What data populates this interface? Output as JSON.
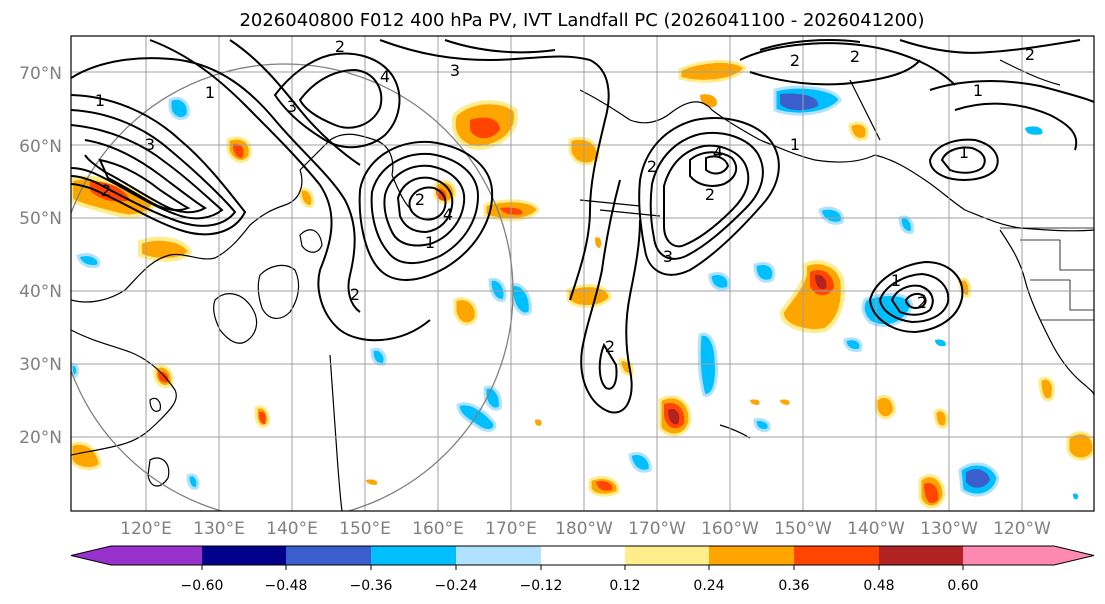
{
  "title": "2026040800 F012 400 hPa PV, IVT Landfall PC (2026041100 - 2026041200)",
  "lat_labels": [
    "70°N",
    "60°N",
    "50°N",
    "40°N",
    "30°N",
    "20°N"
  ],
  "lon_labels": [
    "120°E",
    "130°E",
    "140°E",
    "150°E",
    "160°E",
    "170°E",
    "180°W",
    "170°W",
    "160°W",
    "150°W",
    "140°W",
    "130°W",
    "120°W"
  ],
  "colorbar": {
    "ticks": [
      "−0.60",
      "−0.48",
      "−0.36",
      "−0.24",
      "−0.12",
      "0.12",
      "0.24",
      "0.36",
      "0.48",
      "0.60"
    ],
    "colors": [
      "#9932cc",
      "#00008b",
      "#3a5fcd",
      "#00bfff",
      "#b0e2ff",
      "#ffffff",
      "#ffec8b",
      "#ffa500",
      "#ff4500",
      "#b22222",
      "#ff89b0"
    ]
  },
  "contour_labels": [
    "1",
    "2",
    "3",
    "4"
  ],
  "colors": {
    "contour": "#000000",
    "grid": "#a0a0a0",
    "axis_label": "#808080",
    "circle": "#808080"
  }
}
